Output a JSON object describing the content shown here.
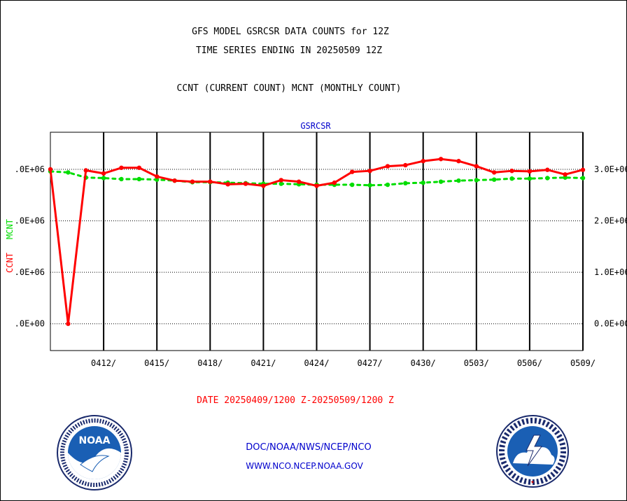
{
  "header": {
    "title_line1": "GFS MODEL GSRCSR DATA COUNTS for 12Z",
    "title_line2": "TIME SERIES ENDING IN 20250509 12Z",
    "subtitle": "CCNT (CURRENT COUNT) MCNT (MONTHLY COUNT)"
  },
  "footer": {
    "date_range": "DATE 20250409/1200 Z-20250509/1200 Z",
    "link1": "DOC/NOAA/NWS/NCEP/NCO",
    "link2": "WWW.NCO.NCEP.NOAA.GOV"
  },
  "logos": {
    "noaa_text": "NOAA",
    "nws_text": "NATIONAL WEATHER SERVICE"
  },
  "colors": {
    "ccnt": "#ff0000",
    "mcnt": "#00dd00",
    "plot_title": "#0000cc",
    "footer_links": "#0000cc",
    "date_range": "#ff0000"
  },
  "chart_data": {
    "type": "line",
    "title": "GSRCSR",
    "xlabel": "DATE 20250409/1200 Z-20250509/1200 Z",
    "ylabel_left": [
      "CCNT",
      "MCNT"
    ],
    "x": [
      "0409",
      "0410",
      "0411",
      "0412",
      "0413",
      "0414",
      "0415",
      "0416",
      "0417",
      "0418",
      "0419",
      "0420",
      "0421",
      "0422",
      "0423",
      "0424",
      "0425",
      "0426",
      "0427",
      "0428",
      "0429",
      "0430",
      "0501",
      "0502",
      "0503",
      "0504",
      "0505",
      "0506",
      "0507",
      "0508",
      "0509"
    ],
    "x_tick_labels": [
      "0412/",
      "0415/",
      "0418/",
      "0421/",
      "0424/",
      "0427/",
      "0430/",
      "0503/",
      "0506/",
      "0509/"
    ],
    "y_tick_labels_left": [
      ".0E+06",
      ".0E+06",
      ".0E+06",
      ".0E+00"
    ],
    "y_tick_labels_right": [
      "3.0E+06",
      "2.0E+06",
      "1.0E+06",
      "0.0E+00"
    ],
    "y_ticks": [
      3000000,
      2000000,
      1000000,
      0
    ],
    "ylim": [
      -520000,
      3720000
    ],
    "grid": true,
    "series": [
      {
        "name": "CCNT",
        "color": "#ff0000",
        "values": [
          3000000,
          0,
          2980000,
          2920000,
          3030000,
          3030000,
          2860000,
          2780000,
          2760000,
          2760000,
          2710000,
          2720000,
          2680000,
          2790000,
          2760000,
          2680000,
          2740000,
          2950000,
          2970000,
          3060000,
          3080000,
          3160000,
          3200000,
          3160000,
          3060000,
          2940000,
          2970000,
          2960000,
          2990000,
          2900000,
          2990000
        ]
      },
      {
        "name": "MCNT",
        "color": "#00dd00",
        "values": [
          2960000,
          2940000,
          2840000,
          2830000,
          2810000,
          2810000,
          2800000,
          2780000,
          2750000,
          2750000,
          2740000,
          2730000,
          2720000,
          2720000,
          2710000,
          2700000,
          2700000,
          2700000,
          2690000,
          2700000,
          2730000,
          2740000,
          2760000,
          2780000,
          2790000,
          2800000,
          2820000,
          2820000,
          2830000,
          2840000,
          2830000
        ]
      }
    ]
  }
}
